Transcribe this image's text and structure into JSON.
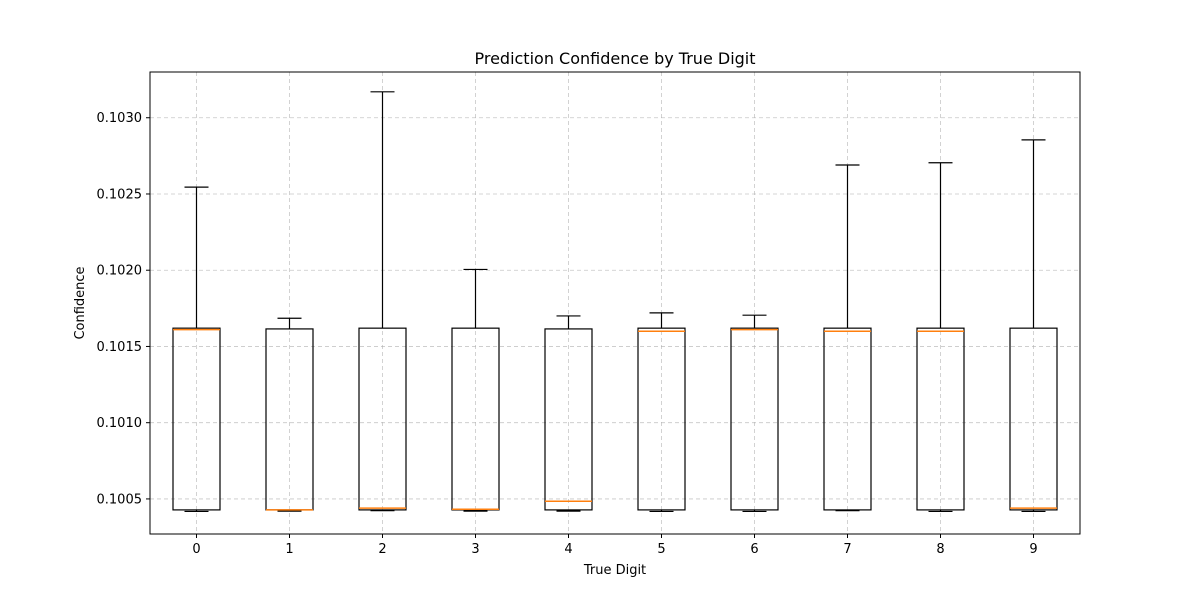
{
  "chart_data": {
    "type": "box",
    "title": "Prediction Confidence by True Digit",
    "xlabel": "True Digit",
    "ylabel": "Confidence",
    "categories": [
      "0",
      "1",
      "2",
      "3",
      "4",
      "5",
      "6",
      "7",
      "8",
      "9"
    ],
    "ylim": [
      0.10027,
      0.1033
    ],
    "yticks": [
      0.1005,
      0.101,
      0.1015,
      0.102,
      0.1025,
      0.103
    ],
    "ytick_labels": [
      "0.1005",
      "0.1010",
      "0.1015",
      "0.1020",
      "0.1025",
      "0.1030"
    ],
    "grid": true,
    "median_color": "#ff7f0e",
    "boxes": [
      {
        "whislo": 0.100418,
        "q1": 0.100428,
        "med": 0.10161,
        "q3": 0.10162,
        "whishi": 0.102545
      },
      {
        "whislo": 0.10042,
        "q1": 0.100428,
        "med": 0.100428,
        "q3": 0.101615,
        "whishi": 0.101685
      },
      {
        "whislo": 0.100423,
        "q1": 0.100428,
        "med": 0.10044,
        "q3": 0.10162,
        "whishi": 0.10317
      },
      {
        "whislo": 0.10042,
        "q1": 0.100428,
        "med": 0.100432,
        "q3": 0.10162,
        "whishi": 0.102005
      },
      {
        "whislo": 0.10042,
        "q1": 0.100428,
        "med": 0.100485,
        "q3": 0.101615,
        "whishi": 0.1017
      },
      {
        "whislo": 0.100418,
        "q1": 0.100428,
        "med": 0.1016,
        "q3": 0.10162,
        "whishi": 0.10172
      },
      {
        "whislo": 0.100418,
        "q1": 0.100428,
        "med": 0.10161,
        "q3": 0.10162,
        "whishi": 0.101705
      },
      {
        "whislo": 0.100423,
        "q1": 0.100428,
        "med": 0.1016,
        "q3": 0.10162,
        "whishi": 0.10269
      },
      {
        "whislo": 0.100418,
        "q1": 0.100428,
        "med": 0.1016,
        "q3": 0.10162,
        "whishi": 0.102705
      },
      {
        "whislo": 0.100418,
        "q1": 0.100428,
        "med": 0.10044,
        "q3": 0.10162,
        "whishi": 0.102855
      }
    ]
  }
}
